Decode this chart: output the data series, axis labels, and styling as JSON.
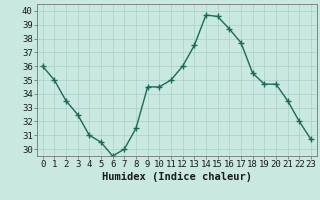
{
  "x": [
    0,
    1,
    2,
    3,
    4,
    5,
    6,
    7,
    8,
    9,
    10,
    11,
    12,
    13,
    14,
    15,
    16,
    17,
    18,
    19,
    20,
    21,
    22,
    23
  ],
  "y": [
    36.0,
    35.0,
    33.5,
    32.5,
    31.0,
    30.5,
    29.5,
    30.0,
    31.5,
    34.5,
    34.5,
    35.0,
    36.0,
    37.5,
    39.7,
    39.6,
    38.7,
    37.7,
    35.5,
    34.7,
    34.7,
    33.5,
    32.0,
    30.7
  ],
  "line_color": "#1a6b5a",
  "marker": "+",
  "bg_color": "#c8e8e0",
  "grid_color": "#aacfc8",
  "xlabel": "Humidex (Indice chaleur)",
  "ylim": [
    29.5,
    40.5
  ],
  "yticks": [
    30,
    31,
    32,
    33,
    34,
    35,
    36,
    37,
    38,
    39,
    40
  ],
  "xtick_labels": [
    "0",
    "1",
    "2",
    "3",
    "4",
    "5",
    "6",
    "7",
    "8",
    "9",
    "10",
    "11",
    "12",
    "13",
    "14",
    "15",
    "16",
    "17",
    "18",
    "19",
    "20",
    "21",
    "22",
    "23"
  ],
  "tick_fontsize": 6.5,
  "xlabel_fontsize": 7.5,
  "line_width": 1.0,
  "marker_size": 4,
  "marker_ew": 1.0
}
